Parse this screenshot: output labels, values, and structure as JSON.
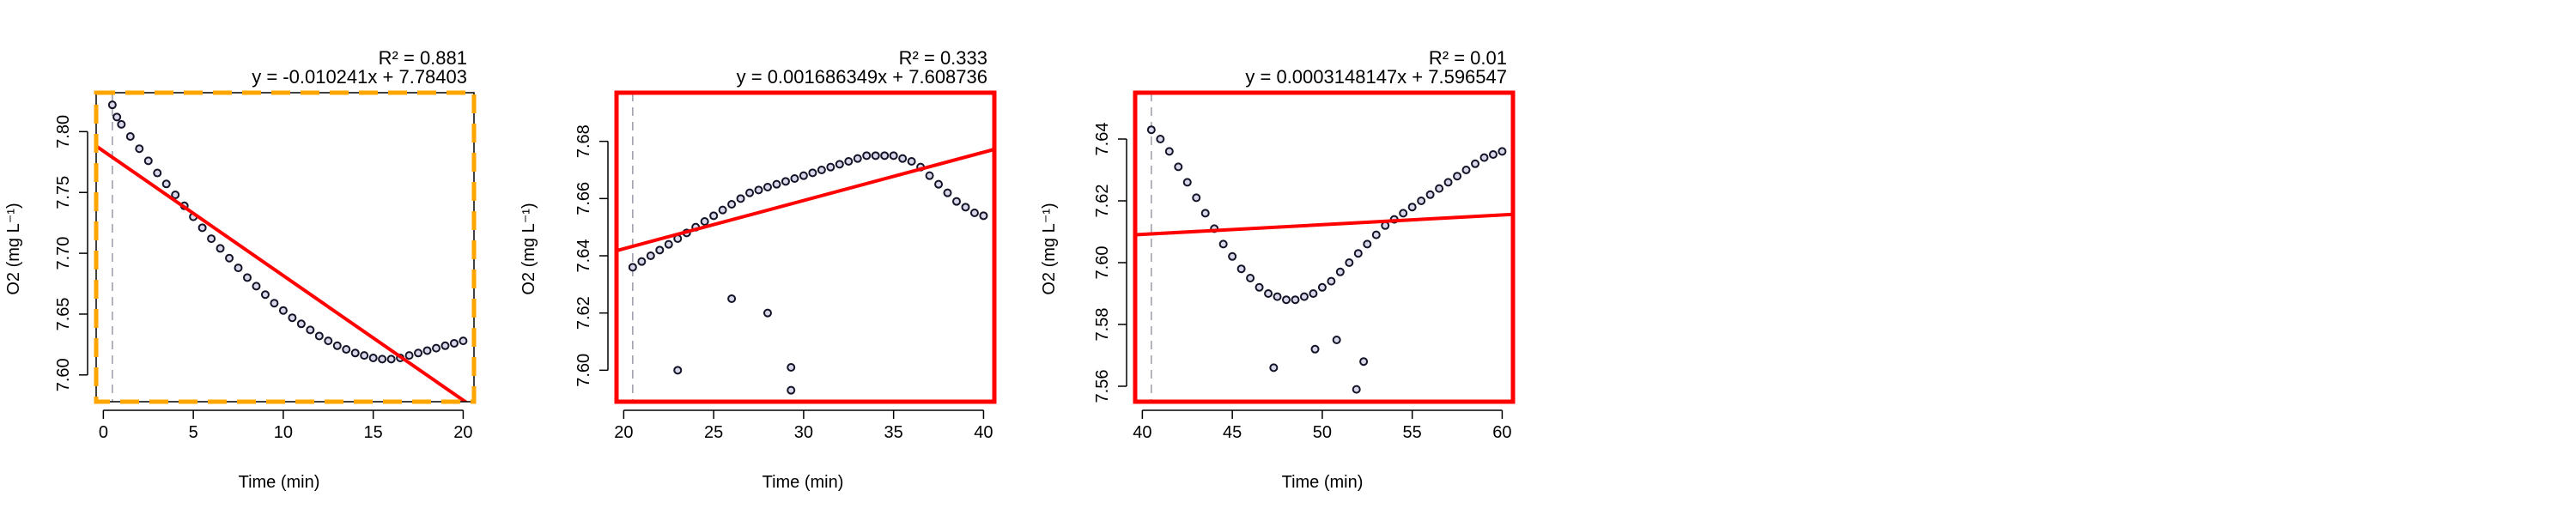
{
  "chart_data": [
    {
      "type": "scatter",
      "xlabel": "Time (min)",
      "ylabel": "O2 (mg L⁻¹)",
      "r2_label": "R² = 0.881",
      "equation": "y = -0.010241x + 7.78403",
      "xlim": [
        -0.4,
        20.6
      ],
      "ylim": [
        7.578,
        7.832
      ],
      "xticks": [
        0,
        5,
        10,
        15,
        20
      ],
      "yticks": [
        7.6,
        7.65,
        7.7,
        7.75,
        7.8
      ],
      "xtick_labels": [
        "0",
        "5",
        "10",
        "15",
        "20"
      ],
      "ytick_labels": [
        "7.60",
        "7.65",
        "7.70",
        "7.75",
        "7.80"
      ],
      "fit": {
        "slope": -0.010241,
        "intercept": 7.78403
      },
      "vline_x": 0.5,
      "border_color": "#FFA500",
      "border_style": "dashed",
      "points": [
        [
          0.5,
          7.822
        ],
        [
          0.75,
          7.812
        ],
        [
          1,
          7.806
        ],
        [
          1.5,
          7.796
        ],
        [
          2,
          7.786
        ],
        [
          2.5,
          7.776
        ],
        [
          3,
          7.766
        ],
        [
          3.5,
          7.757
        ],
        [
          4,
          7.748
        ],
        [
          4.5,
          7.739
        ],
        [
          5,
          7.73
        ],
        [
          5.5,
          7.721
        ],
        [
          6,
          7.712
        ],
        [
          6.5,
          7.704
        ],
        [
          7,
          7.696
        ],
        [
          7.5,
          7.688
        ],
        [
          8,
          7.68
        ],
        [
          8.5,
          7.673
        ],
        [
          9,
          7.666
        ],
        [
          9.5,
          7.659
        ],
        [
          10,
          7.653
        ],
        [
          10.5,
          7.647
        ],
        [
          11,
          7.642
        ],
        [
          11.5,
          7.637
        ],
        [
          12,
          7.632
        ],
        [
          12.5,
          7.628
        ],
        [
          13,
          7.624
        ],
        [
          13.5,
          7.621
        ],
        [
          14,
          7.618
        ],
        [
          14.5,
          7.616
        ],
        [
          15,
          7.614
        ],
        [
          15.5,
          7.613
        ],
        [
          16,
          7.613
        ],
        [
          16.5,
          7.614
        ],
        [
          17,
          7.616
        ],
        [
          17.5,
          7.618
        ],
        [
          18,
          7.62
        ],
        [
          18.5,
          7.622
        ],
        [
          19,
          7.624
        ],
        [
          19.5,
          7.626
        ],
        [
          20,
          7.628
        ]
      ]
    },
    {
      "type": "scatter",
      "xlabel": "Time (min)",
      "ylabel": "O2 (mg L⁻¹)",
      "r2_label": "R² = 0.333",
      "equation": "y = 0.001686349x + 7.608736",
      "xlim": [
        19.6,
        40.6
      ],
      "ylim": [
        7.589,
        7.697
      ],
      "xticks": [
        20,
        25,
        30,
        35,
        40
      ],
      "yticks": [
        7.6,
        7.62,
        7.64,
        7.66,
        7.68
      ],
      "xtick_labels": [
        "20",
        "25",
        "30",
        "35",
        "40"
      ],
      "ytick_labels": [
        "7.60",
        "7.62",
        "7.64",
        "7.66",
        "7.68"
      ],
      "fit": {
        "slope": 0.001686349,
        "intercept": 7.608736
      },
      "vline_x": 20.5,
      "border_color": "#FF0000",
      "border_style": "solid",
      "points": [
        [
          20.5,
          7.636
        ],
        [
          21,
          7.638
        ],
        [
          21.5,
          7.64
        ],
        [
          22,
          7.642
        ],
        [
          22.5,
          7.644
        ],
        [
          23,
          7.646
        ],
        [
          23.5,
          7.648
        ],
        [
          24,
          7.65
        ],
        [
          24.5,
          7.652
        ],
        [
          25,
          7.654
        ],
        [
          25.5,
          7.656
        ],
        [
          26,
          7.658
        ],
        [
          26.5,
          7.66
        ],
        [
          27,
          7.662
        ],
        [
          27.5,
          7.663
        ],
        [
          28,
          7.664
        ],
        [
          28.5,
          7.665
        ],
        [
          29,
          7.666
        ],
        [
          29.5,
          7.667
        ],
        [
          30,
          7.668
        ],
        [
          30.5,
          7.669
        ],
        [
          31,
          7.67
        ],
        [
          31.5,
          7.671
        ],
        [
          32,
          7.672
        ],
        [
          32.5,
          7.673
        ],
        [
          33,
          7.674
        ],
        [
          33.5,
          7.675
        ],
        [
          34,
          7.675
        ],
        [
          34.5,
          7.675
        ],
        [
          35,
          7.675
        ],
        [
          35.5,
          7.674
        ],
        [
          36,
          7.673
        ],
        [
          36.5,
          7.671
        ],
        [
          37,
          7.668
        ],
        [
          37.5,
          7.665
        ],
        [
          38,
          7.662
        ],
        [
          38.5,
          7.659
        ],
        [
          39,
          7.657
        ],
        [
          39.5,
          7.655
        ],
        [
          40,
          7.654
        ],
        [
          23,
          7.6
        ],
        [
          29.3,
          7.593
        ],
        [
          29.3,
          7.601
        ],
        [
          26,
          7.625
        ],
        [
          28,
          7.62
        ]
      ]
    },
    {
      "type": "scatter",
      "xlabel": "Time (min)",
      "ylabel": "O2 (mg L⁻¹)",
      "r2_label": "R² = 0.01",
      "equation": "y = 0.0003148147x + 7.596547",
      "xlim": [
        39.6,
        60.6
      ],
      "ylim": [
        7.555,
        7.655
      ],
      "xticks": [
        40,
        45,
        50,
        55,
        60
      ],
      "yticks": [
        7.56,
        7.58,
        7.6,
        7.62,
        7.64
      ],
      "xtick_labels": [
        "40",
        "45",
        "50",
        "55",
        "60"
      ],
      "ytick_labels": [
        "7.56",
        "7.58",
        "7.60",
        "7.62",
        "7.64"
      ],
      "fit": {
        "slope": 0.0003148147,
        "intercept": 7.596547
      },
      "vline_x": 40.5,
      "border_color": "#FF0000",
      "border_style": "solid",
      "points": [
        [
          40.5,
          7.643
        ],
        [
          41,
          7.64
        ],
        [
          41.5,
          7.636
        ],
        [
          42,
          7.631
        ],
        [
          42.5,
          7.626
        ],
        [
          43,
          7.621
        ],
        [
          43.5,
          7.616
        ],
        [
          44,
          7.611
        ],
        [
          44.5,
          7.606
        ],
        [
          45,
          7.602
        ],
        [
          45.5,
          7.598
        ],
        [
          46,
          7.595
        ],
        [
          46.5,
          7.592
        ],
        [
          47,
          7.59
        ],
        [
          47.5,
          7.589
        ],
        [
          48,
          7.588
        ],
        [
          48.5,
          7.588
        ],
        [
          49,
          7.589
        ],
        [
          49.5,
          7.59
        ],
        [
          50,
          7.592
        ],
        [
          50.5,
          7.594
        ],
        [
          51,
          7.597
        ],
        [
          51.5,
          7.6
        ],
        [
          52,
          7.603
        ],
        [
          52.5,
          7.606
        ],
        [
          53,
          7.609
        ],
        [
          53.5,
          7.612
        ],
        [
          54,
          7.614
        ],
        [
          54.5,
          7.616
        ],
        [
          55,
          7.618
        ],
        [
          55.5,
          7.62
        ],
        [
          56,
          7.622
        ],
        [
          56.5,
          7.624
        ],
        [
          57,
          7.626
        ],
        [
          57.5,
          7.628
        ],
        [
          58,
          7.63
        ],
        [
          58.5,
          7.632
        ],
        [
          59,
          7.634
        ],
        [
          59.5,
          7.635
        ],
        [
          60,
          7.636
        ],
        [
          47.3,
          7.566
        ],
        [
          49.6,
          7.572
        ],
        [
          51.9,
          7.559
        ],
        [
          52.3,
          7.568
        ],
        [
          50.8,
          7.575
        ]
      ]
    }
  ]
}
